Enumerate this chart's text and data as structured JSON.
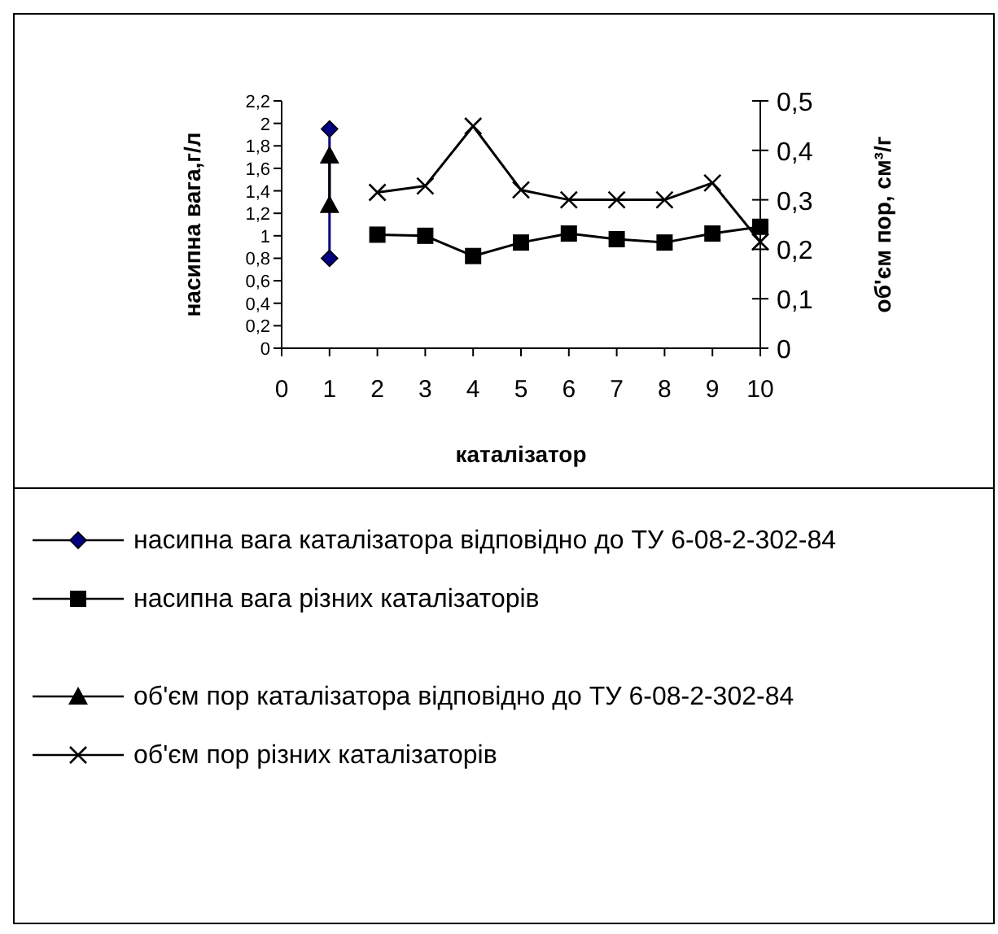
{
  "chart_data": {
    "type": "line",
    "xlabel": "каталізатор",
    "ylabel": "насипна вага,г/л",
    "y2label": "об'єм пор, см³/г",
    "xlim": [
      0,
      10
    ],
    "xticks": [
      0,
      1,
      2,
      3,
      4,
      5,
      6,
      7,
      8,
      9,
      10
    ],
    "ylim": [
      0,
      2.2
    ],
    "yticks": [
      0,
      {
        "value": 0.2,
        "label": "0,2"
      },
      {
        "value": 0.4,
        "label": "0,4"
      },
      {
        "value": 0.6,
        "label": "0,6"
      },
      {
        "value": 0.8,
        "label": "0,8"
      },
      1,
      {
        "value": 1.2,
        "label": "1,2"
      },
      {
        "value": 1.4,
        "label": "1,4"
      },
      {
        "value": 1.6,
        "label": "1,6"
      },
      {
        "value": 1.8,
        "label": "1,8"
      },
      2,
      {
        "value": 2.2,
        "label": "2,2"
      }
    ],
    "y2lim": [
      0,
      0.5
    ],
    "y2ticks": [
      0,
      {
        "value": 0.1,
        "label": "0,1"
      },
      {
        "value": 0.2,
        "label": "0,2"
      },
      {
        "value": 0.3,
        "label": "0,3"
      },
      {
        "value": 0.4,
        "label": "0,4"
      },
      {
        "value": 0.5,
        "label": "0,5"
      }
    ],
    "grid": false,
    "legend": "bottom",
    "line_style": "solid",
    "series": [
      {
        "name": "насипна вага каталізатора відповідно до ТУ 6-08-2-302-84",
        "color": "#000080",
        "marker": "diamond",
        "x": [
          1,
          1
        ],
        "values": [
          0.8,
          1.95
        ]
      },
      {
        "name": "насипна вага різних каталізаторів",
        "color": "#000000",
        "marker": "square",
        "x": [
          2,
          3,
          4,
          5,
          6,
          7,
          8,
          9,
          10
        ],
        "values": [
          1.01,
          1.0,
          0.82,
          0.94,
          1.02,
          0.97,
          0.94,
          1.02,
          1.08
        ]
      },
      {
        "name": "об'єм пор каталізатора відповідно до ТУ 6-08-2-302-84",
        "color": "#000000",
        "marker": "triangle",
        "axis": "y2",
        "x": [
          1,
          1
        ],
        "values": [
          0.29,
          0.39
        ]
      },
      {
        "name": "об'єм пор різних каталізаторів",
        "color": "#000000",
        "marker": "cross",
        "axis": "y2",
        "x": [
          2,
          3,
          4,
          5,
          6,
          7,
          8,
          9,
          10
        ],
        "values": [
          0.315,
          0.328,
          0.449,
          0.32,
          0.3,
          0.3,
          0.3,
          0.334,
          0.215
        ]
      }
    ]
  }
}
